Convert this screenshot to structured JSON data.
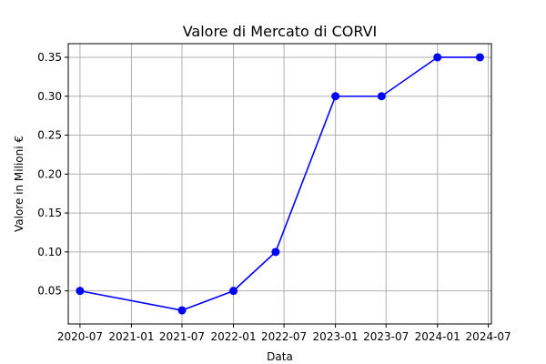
{
  "chart_data": {
    "type": "line",
    "title": "Valore di Mercato di CORVI",
    "xlabel": "Data",
    "ylabel": "Valore in Milioni €",
    "x": [
      "2020-07-01",
      "2021-07-01",
      "2022-01-01",
      "2022-06-01",
      "2023-01-01",
      "2023-06-15",
      "2024-01-01",
      "2024-06-01"
    ],
    "series": [
      {
        "values": [
          0.05,
          0.025,
          0.05,
          0.1,
          0.3,
          0.3,
          0.35,
          0.35
        ],
        "color": "#0000ff",
        "marker": "circle"
      }
    ],
    "x_ticks": [
      "2020-07",
      "2021-01",
      "2021-07",
      "2022-01",
      "2022-07",
      "2023-01",
      "2023-07",
      "2024-01",
      "2024-07"
    ],
    "y_ticks": [
      "0.05",
      "0.10",
      "0.15",
      "0.20",
      "0.25",
      "0.30",
      "0.35"
    ],
    "xlim": [
      "2020-05-20",
      "2024-07-12"
    ],
    "ylim": [
      0.0075,
      0.3675
    ],
    "grid": true,
    "legend": false
  }
}
